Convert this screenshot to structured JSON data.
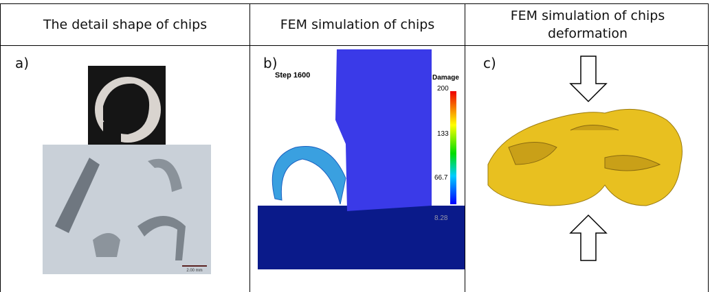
{
  "table": {
    "headers": [
      "The detail shape of chips",
      "FEM simulation of chips",
      "FEM simulation of chips deformation"
    ],
    "cells": [
      {
        "label": "a)",
        "scale_bar": "2.00 mm"
      },
      {
        "label": "b)",
        "step": "Step 1600",
        "legend_title": "Damage",
        "legend_ticks": [
          "200",
          "133",
          "66.7",
          "8.28"
        ]
      },
      {
        "label": "c)"
      }
    ]
  }
}
